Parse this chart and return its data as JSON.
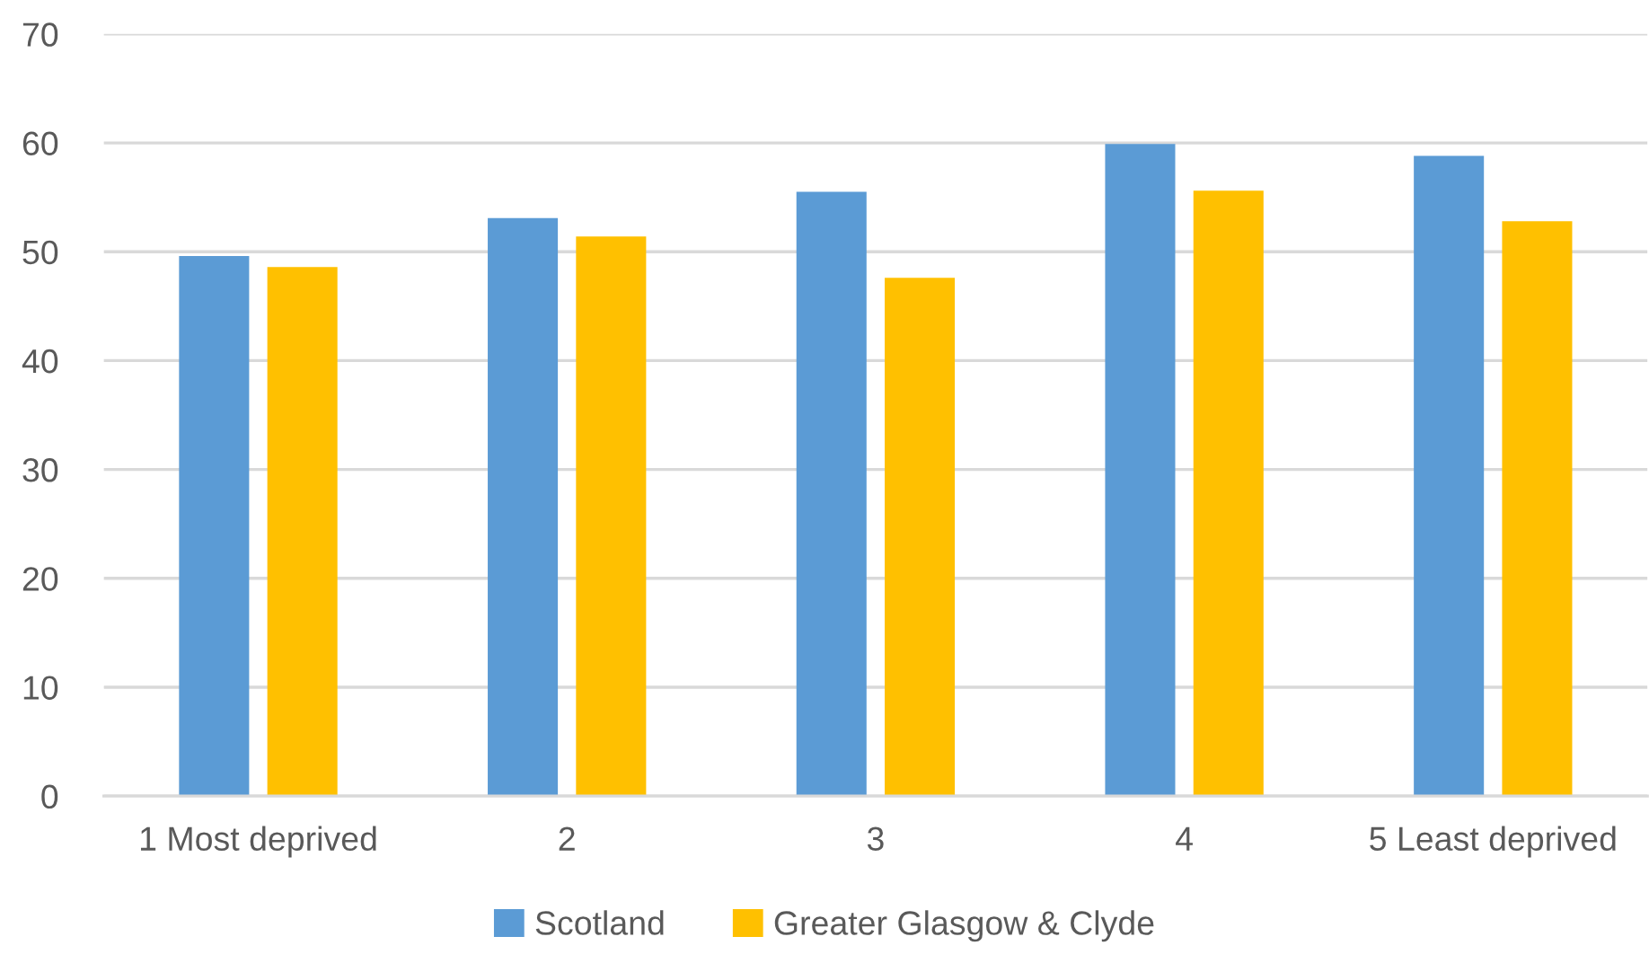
{
  "chart_data": {
    "type": "bar",
    "categories": [
      "1 Most deprived",
      "2",
      "3",
      "4",
      "5 Least deprived"
    ],
    "series": [
      {
        "name": "Scotland",
        "color": "#5b9bd5",
        "values": [
          49.6,
          53.1,
          55.5,
          59.9,
          58.8
        ]
      },
      {
        "name": "Greater Glasgow & Clyde",
        "color": "#ffc000",
        "values": [
          48.6,
          51.4,
          47.6,
          55.6,
          52.8
        ]
      }
    ],
    "ylim": [
      0,
      70
    ],
    "yticks": [
      0,
      10,
      20,
      30,
      40,
      50,
      60,
      70
    ],
    "grid": "y",
    "legend": "bottom"
  }
}
